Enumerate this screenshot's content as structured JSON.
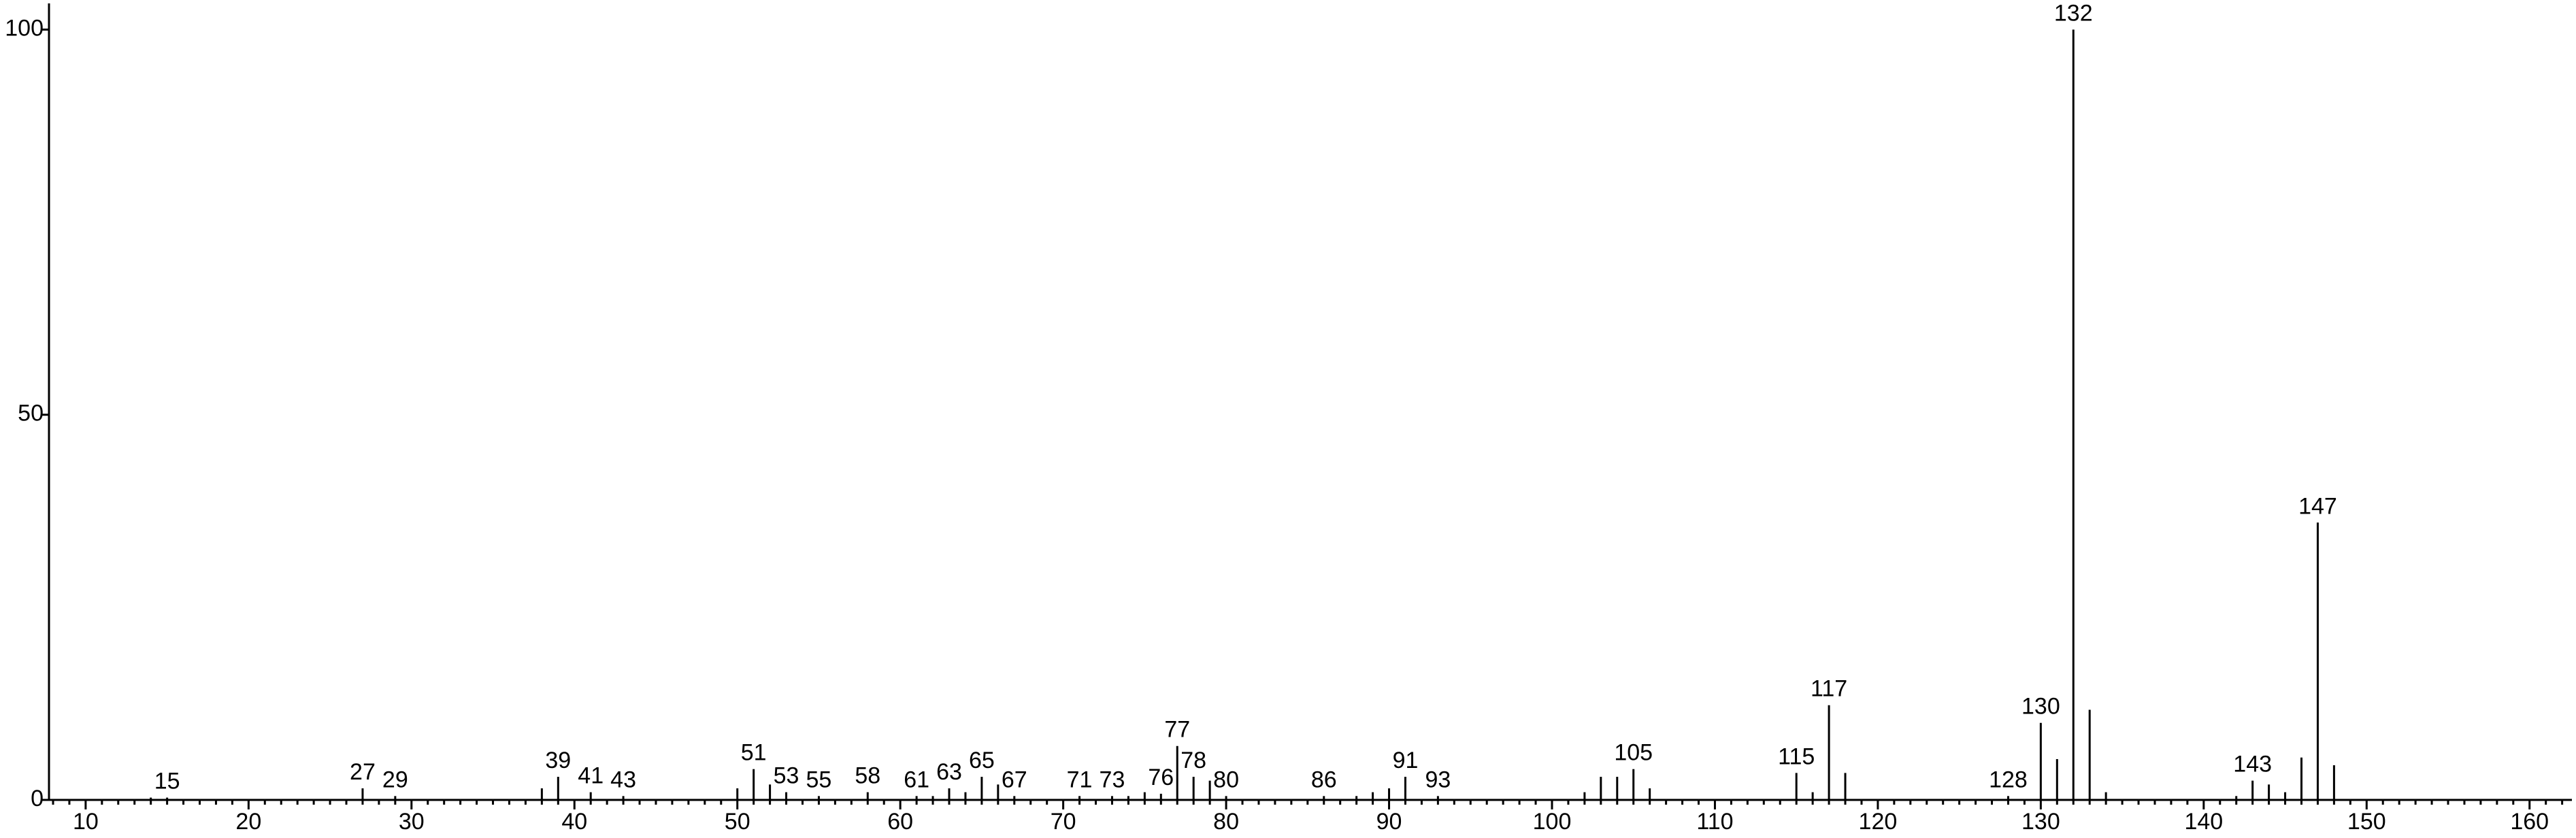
{
  "chart_data": {
    "type": "stem",
    "color": "#000000",
    "x": [
      14,
      15,
      27,
      29,
      38,
      39,
      41,
      43,
      50,
      51,
      52,
      53,
      55,
      58,
      61,
      62,
      63,
      64,
      65,
      66,
      67,
      71,
      73,
      74,
      75,
      76,
      77,
      78,
      79,
      80,
      86,
      88,
      89,
      90,
      91,
      93,
      102,
      103,
      104,
      105,
      106,
      115,
      116,
      117,
      118,
      128,
      130,
      131,
      132,
      133,
      134,
      142,
      143,
      144,
      145,
      146,
      147,
      148
    ],
    "values": [
      0.3,
      0.3,
      1.5,
      0.5,
      1.5,
      3,
      1,
      0.5,
      1.5,
      4,
      2,
      1,
      0.5,
      1,
      0.5,
      0.5,
      1.5,
      1,
      3,
      2,
      0.5,
      0.5,
      0.5,
      0.5,
      1,
      0.8,
      7,
      3,
      2.5,
      0.5,
      0.5,
      0.5,
      1,
      1.5,
      3,
      0.5,
      1,
      3,
      3,
      4,
      1.5,
      3.5,
      1,
      12.3,
      3.5,
      0.5,
      10,
      5.3,
      100,
      11.7,
      1,
      0.5,
      2.5,
      2,
      1,
      5.5,
      36,
      4.5
    ],
    "annotations": [
      15,
      27,
      29,
      39,
      41,
      43,
      51,
      53,
      55,
      58,
      61,
      63,
      65,
      67,
      71,
      73,
      76,
      77,
      78,
      80,
      86,
      91,
      93,
      105,
      115,
      117,
      128,
      130,
      132,
      143,
      147
    ],
    "xlim": [
      7.75,
      162.6
    ],
    "ylim": [
      0,
      103.4
    ],
    "xticks": [
      10,
      20,
      30,
      40,
      50,
      60,
      70,
      80,
      90,
      100,
      110,
      120,
      130,
      140,
      150,
      160
    ],
    "xminorticks": [
      8,
      9,
      11,
      12,
      13,
      14,
      15,
      16,
      17,
      18,
      19,
      21,
      22,
      23,
      24,
      25,
      26,
      27,
      28,
      29,
      31,
      32,
      33,
      34,
      35,
      36,
      37,
      38,
      39,
      41,
      42,
      43,
      44,
      45,
      46,
      47,
      48,
      49,
      51,
      52,
      53,
      54,
      55,
      56,
      57,
      58,
      59,
      61,
      62,
      63,
      64,
      65,
      66,
      67,
      68,
      69,
      71,
      72,
      73,
      74,
      75,
      76,
      77,
      78,
      79,
      81,
      82,
      83,
      84,
      85,
      86,
      87,
      88,
      89,
      91,
      92,
      93,
      94,
      95,
      96,
      97,
      98,
      99,
      101,
      102,
      103,
      104,
      105,
      106,
      107,
      108,
      109,
      111,
      112,
      113,
      114,
      115,
      116,
      117,
      118,
      119,
      121,
      122,
      123,
      124,
      125,
      126,
      127,
      128,
      129,
      131,
      132,
      133,
      134,
      135,
      136,
      137,
      138,
      139,
      141,
      142,
      143,
      144,
      145,
      146,
      147,
      148,
      149,
      151,
      152,
      153,
      154,
      155,
      156,
      157,
      158,
      159,
      161,
      162
    ],
    "yticks": [
      0,
      50,
      100
    ]
  }
}
